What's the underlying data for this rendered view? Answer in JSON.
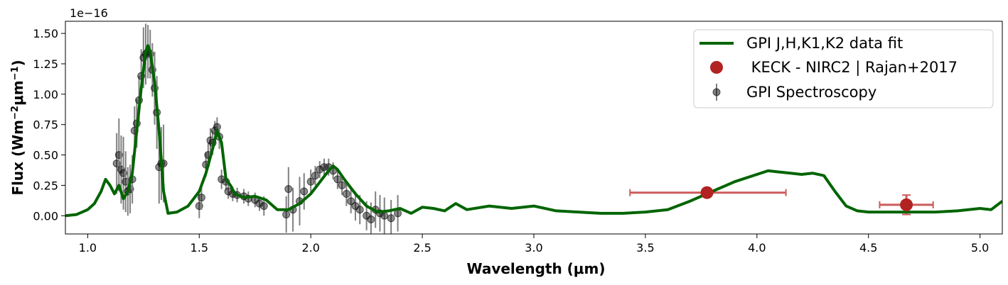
{
  "chart_data": {
    "type": "line",
    "xlabel": "Wavelength (μm)",
    "ylabel": "Flux (Wm",
    "ylabel_sup1": "−2",
    "ylabel_mid": "μm",
    "ylabel_sup2": "−1",
    "ylabel_end": ")",
    "y_offset_text": "1e−16",
    "xlim": [
      0.9,
      5.1
    ],
    "ylim": [
      -0.15,
      1.6
    ],
    "x_ticks": [
      1.0,
      1.5,
      2.0,
      2.5,
      3.0,
      3.5,
      4.0,
      4.5,
      5.0
    ],
    "x_tick_labels": [
      "1.0",
      "1.5",
      "2.0",
      "2.5",
      "3.0",
      "3.5",
      "4.0",
      "4.5",
      "5.0"
    ],
    "y_ticks": [
      0.0,
      0.25,
      0.5,
      0.75,
      1.0,
      1.25,
      1.5
    ],
    "y_tick_labels": [
      "0.00",
      "0.25",
      "0.50",
      "0.75",
      "1.00",
      "1.25",
      "1.50"
    ],
    "legend": {
      "placement": "upper right",
      "entries": [
        {
          "label": "GPI J,H,K1,K2 data fit",
          "marker": "line",
          "color": "#006400"
        },
        {
          "label": " KECK - NIRC2 | Rajan+2017",
          "marker": "circle",
          "color": "#b22222"
        },
        {
          "label": "GPI Spectroscopy",
          "marker": "errorbar-point",
          "color": "#555555"
        }
      ]
    },
    "series": [
      {
        "name": "GPI J,H,K1,K2 data fit",
        "kind": "line",
        "color": "#006400",
        "x": [
          0.9,
          0.95,
          1.0,
          1.03,
          1.06,
          1.08,
          1.1,
          1.12,
          1.14,
          1.16,
          1.18,
          1.2,
          1.22,
          1.24,
          1.26,
          1.27,
          1.28,
          1.3,
          1.32,
          1.34,
          1.36,
          1.4,
          1.45,
          1.5,
          1.53,
          1.56,
          1.58,
          1.6,
          1.62,
          1.64,
          1.66,
          1.7,
          1.75,
          1.8,
          1.85,
          1.9,
          1.95,
          2.0,
          2.05,
          2.08,
          2.1,
          2.12,
          2.15,
          2.2,
          2.25,
          2.3,
          2.35,
          2.4,
          2.45,
          2.5,
          2.55,
          2.6,
          2.65,
          2.7,
          2.8,
          2.9,
          3.0,
          3.1,
          3.2,
          3.3,
          3.4,
          3.5,
          3.6,
          3.7,
          3.8,
          3.9,
          4.0,
          4.05,
          4.1,
          4.15,
          4.2,
          4.25,
          4.3,
          4.35,
          4.4,
          4.45,
          4.5,
          4.6,
          4.7,
          4.8,
          4.9,
          5.0,
          5.05,
          5.1
        ],
        "y": [
          0.0,
          0.01,
          0.05,
          0.1,
          0.2,
          0.3,
          0.25,
          0.18,
          0.25,
          0.14,
          0.2,
          0.35,
          0.7,
          1.05,
          1.35,
          1.4,
          1.35,
          1.1,
          0.7,
          0.2,
          0.02,
          0.03,
          0.08,
          0.2,
          0.35,
          0.55,
          0.7,
          0.6,
          0.3,
          0.25,
          0.18,
          0.15,
          0.16,
          0.13,
          0.05,
          0.05,
          0.1,
          0.18,
          0.3,
          0.37,
          0.41,
          0.38,
          0.3,
          0.18,
          0.08,
          0.03,
          0.04,
          0.06,
          0.02,
          0.07,
          0.06,
          0.04,
          0.1,
          0.05,
          0.08,
          0.06,
          0.08,
          0.04,
          0.03,
          0.02,
          0.02,
          0.03,
          0.05,
          0.12,
          0.2,
          0.28,
          0.34,
          0.37,
          0.36,
          0.35,
          0.34,
          0.35,
          0.33,
          0.2,
          0.08,
          0.04,
          0.03,
          0.03,
          0.03,
          0.03,
          0.04,
          0.06,
          0.05,
          0.12
        ]
      },
      {
        "name": " KECK - NIRC2 | Rajan+2017",
        "kind": "errorbar",
        "color": "#b22222",
        "ecolor": "#cd5c5c",
        "points": [
          {
            "x": 3.776,
            "y": 0.19,
            "xerr": [
              0.345,
              0.354
            ],
            "yerr": 0.0
          },
          {
            "x": 4.67,
            "y": 0.09,
            "xerr": [
              0.12,
              0.12
            ],
            "yerr": 0.08
          }
        ]
      },
      {
        "name": "GPI Spectroscopy",
        "kind": "errorbar",
        "color": "#000000",
        "ecolor": "#808080",
        "x": [
          1.13,
          1.14,
          1.15,
          1.16,
          1.17,
          1.18,
          1.19,
          1.2,
          1.21,
          1.22,
          1.23,
          1.24,
          1.25,
          1.26,
          1.27,
          1.28,
          1.29,
          1.3,
          1.31,
          1.32,
          1.33,
          1.34,
          1.5,
          1.51,
          1.53,
          1.54,
          1.55,
          1.56,
          1.57,
          1.58,
          1.59,
          1.6,
          1.62,
          1.63,
          1.65,
          1.67,
          1.7,
          1.72,
          1.75,
          1.77,
          1.79,
          1.89,
          1.9,
          1.92,
          1.95,
          1.97,
          2.0,
          2.02,
          2.04,
          2.06,
          2.08,
          2.1,
          2.12,
          2.14,
          2.16,
          2.18,
          2.2,
          2.22,
          2.25,
          2.27,
          2.29,
          2.31,
          2.33,
          2.36,
          2.39
        ],
        "y": [
          0.43,
          0.5,
          0.38,
          0.35,
          0.28,
          0.2,
          0.22,
          0.3,
          0.7,
          0.76,
          0.95,
          1.15,
          1.3,
          1.33,
          1.35,
          1.33,
          1.2,
          1.05,
          0.85,
          0.4,
          0.43,
          0.43,
          0.08,
          0.15,
          0.42,
          0.5,
          0.62,
          0.6,
          0.7,
          0.73,
          0.65,
          0.3,
          0.28,
          0.2,
          0.18,
          0.17,
          0.16,
          0.14,
          0.13,
          0.1,
          0.08,
          0.01,
          0.22,
          0.05,
          0.12,
          0.2,
          0.28,
          0.33,
          0.38,
          0.4,
          0.4,
          0.37,
          0.3,
          0.25,
          0.18,
          0.12,
          0.08,
          0.05,
          0.0,
          -0.03,
          0.05,
          0.02,
          0.0,
          -0.02,
          0.02
        ],
        "yerr": [
          0.25,
          0.3,
          0.28,
          0.3,
          0.25,
          0.2,
          0.2,
          0.2,
          0.2,
          0.2,
          0.2,
          0.22,
          0.25,
          0.25,
          0.22,
          0.2,
          0.22,
          0.3,
          0.3,
          0.3,
          0.3,
          0.32,
          0.1,
          0.1,
          0.1,
          0.1,
          0.1,
          0.1,
          0.08,
          0.08,
          0.1,
          0.08,
          0.07,
          0.06,
          0.06,
          0.06,
          0.06,
          0.06,
          0.06,
          0.06,
          0.08,
          0.15,
          0.18,
          0.18,
          0.2,
          0.15,
          0.1,
          0.08,
          0.07,
          0.07,
          0.07,
          0.07,
          0.08,
          0.08,
          0.1,
          0.1,
          0.12,
          0.12,
          0.12,
          0.14,
          0.15,
          0.15,
          0.15,
          0.15,
          0.15
        ]
      }
    ]
  }
}
